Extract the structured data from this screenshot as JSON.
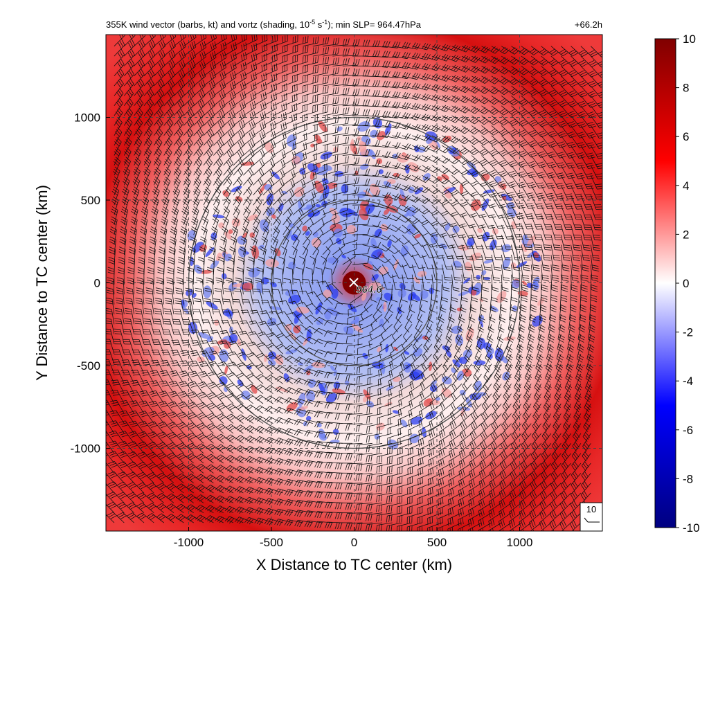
{
  "chart_data": {
    "type": "heatmap",
    "title_main": "355K wind vector (barbs, kt) and vortz (shading, 10",
    "title_exp1": "-5",
    "title_mid": " s",
    "title_exp2": "-1",
    "title_end": "); min SLP= 964.47hPa",
    "time_label": "+66.2h",
    "xlabel": "X Distance to TC center (km)",
    "ylabel": "Y Distance to TC center (km)",
    "xlim": [
      -1500,
      1500
    ],
    "ylim": [
      -1500,
      1500
    ],
    "x_ticks": [
      -1000,
      -500,
      0,
      500,
      1000
    ],
    "y_ticks": [
      -1000,
      -500,
      0,
      500,
      1000
    ],
    "x_tick_labels": [
      "-1000",
      "-500",
      "0",
      "500",
      "1000"
    ],
    "y_tick_labels": [
      "-1000",
      "-500",
      "0",
      "500",
      "1000"
    ],
    "grid": true,
    "range_circles_km": [
      500,
      1000
    ],
    "center_label": "964.6",
    "reference_barb_label": "10",
    "colorbar": {
      "min": -10,
      "max": 10,
      "tick_values": [
        10,
        8,
        6,
        4,
        2,
        0,
        -2,
        -4,
        -6,
        -8,
        -10
      ],
      "tick_labels": [
        "10",
        "8",
        "6",
        "4",
        "2",
        "0",
        "-2",
        "-4",
        "-6",
        "-8",
        "-10"
      ],
      "colors": [
        "#000080",
        "#0000ff",
        "#ffffff",
        "#ff0000",
        "#800000"
      ]
    },
    "vorticity_structure": [
      {
        "feature": "center core",
        "radius_km": [
          0,
          70
        ],
        "value": 10
      },
      {
        "feature": "inner mixed region",
        "radius_km": [
          70,
          560
        ],
        "value_range": [
          -6,
          4
        ]
      },
      {
        "feature": "outer light band",
        "radius_km": [
          600,
          1000
        ],
        "value_range": [
          1,
          3
        ]
      },
      {
        "feature": "outer strong ring",
        "radius_km": [
          1100,
          1400
        ],
        "value_range": [
          6,
          9
        ]
      }
    ]
  }
}
